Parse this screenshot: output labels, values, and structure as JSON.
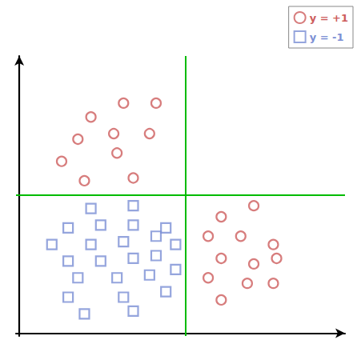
{
  "chart_data": {
    "type": "scatter",
    "series": [
      {
        "name": "y = +1",
        "color": "#cd5c5c",
        "marker": "circle",
        "x": [
          2.2,
          3.2,
          4.2,
          1.8,
          2.9,
          4.0,
          1.3,
          3.0,
          2.0,
          3.5,
          6.2,
          7.2,
          5.8,
          6.8,
          7.8,
          6.2,
          7.2,
          7.9,
          5.8,
          7.0,
          7.8,
          6.2
        ],
        "y": [
          7.8,
          8.3,
          8.3,
          7.0,
          7.2,
          7.2,
          6.2,
          6.5,
          5.5,
          5.6,
          4.2,
          4.6,
          3.5,
          3.5,
          3.2,
          2.7,
          2.5,
          2.7,
          2.0,
          1.8,
          1.8,
          1.2
        ]
      },
      {
        "name": "y = -1",
        "color": "#7b8fd4",
        "marker": "square",
        "x": [
          2.2,
          3.5,
          1.5,
          2.5,
          3.5,
          4.5,
          1.0,
          2.2,
          3.2,
          4.2,
          4.8,
          1.5,
          2.5,
          3.5,
          4.2,
          1.8,
          3.0,
          4.0,
          4.8,
          1.5,
          3.2,
          4.5,
          2.0,
          3.5
        ],
        "y": [
          4.5,
          4.6,
          3.8,
          3.9,
          3.9,
          3.8,
          3.2,
          3.2,
          3.3,
          3.5,
          3.2,
          2.6,
          2.6,
          2.7,
          2.8,
          2.0,
          2.0,
          2.1,
          2.3,
          1.3,
          1.3,
          1.5,
          0.7,
          0.8
        ]
      }
    ],
    "reference_lines": [
      {
        "axis": "x",
        "value": 5.1,
        "color": "#00bb00"
      },
      {
        "axis": "y",
        "value": 5.0,
        "color": "#00bb00"
      }
    ],
    "xlim": [
      -0.1,
      10.0
    ],
    "ylim": [
      -0.1,
      10.0
    ],
    "xticks": [],
    "yticks": [],
    "tick_labels": false,
    "grid": false,
    "legend": "upper right"
  }
}
